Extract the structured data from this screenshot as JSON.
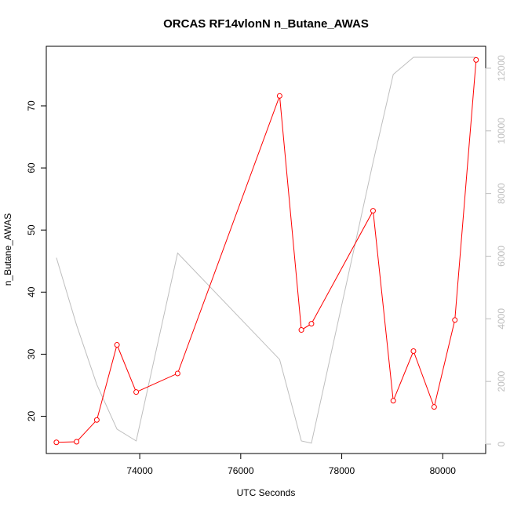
{
  "chart_data": {
    "type": "line",
    "title": "ORCAS RF14vlonN n_Butane_AWAS",
    "xlabel": "UTC Seconds",
    "ylabel": "n_Butane_AWAS",
    "xlim": [
      72150,
      80850
    ],
    "ylim": [
      14.0,
      79.6
    ],
    "y2lim": [
      -300,
      12700
    ],
    "x_ticks": [
      74000,
      76000,
      78000,
      80000
    ],
    "x_tick_labels": [
      "74000",
      "76000",
      "78000",
      "80000"
    ],
    "y_ticks": [
      20,
      30,
      40,
      50,
      60,
      70
    ],
    "y_tick_labels": [
      "20",
      "30",
      "40",
      "50",
      "60",
      "70"
    ],
    "y2_ticks": [
      0,
      2000,
      4000,
      6000,
      8000,
      10000,
      12000
    ],
    "y2_tick_labels": [
      "0",
      "2000",
      "4000",
      "6000",
      "8000",
      "10000",
      "12000"
    ],
    "grid": false,
    "colors": {
      "primary": "#ff0000",
      "secondary": "#bebebe",
      "axis": "#000000"
    },
    "series": [
      {
        "axis": "left",
        "style": "line+points",
        "color": "#ff0000",
        "x": [
          72350,
          72750,
          73150,
          73550,
          73930,
          74750,
          76770,
          77200,
          77400,
          78620,
          79020,
          79420,
          79830,
          80240,
          80660
        ],
        "y": [
          15.8,
          15.9,
          19.4,
          31.5,
          23.9,
          26.9,
          71.6,
          33.9,
          34.9,
          53.1,
          22.5,
          30.5,
          21.5,
          35.5,
          77.4
        ]
      },
      {
        "axis": "right",
        "style": "line",
        "color": "#bebebe",
        "x": [
          72350,
          72750,
          73150,
          73550,
          73930,
          74750,
          76770,
          77200,
          77400,
          78620,
          79020,
          79420,
          79830,
          80240,
          80660
        ],
        "y": [
          5950,
          3800,
          1900,
          480,
          100,
          6100,
          2700,
          100,
          30,
          9000,
          11800,
          12350,
          12350,
          12350,
          12350
        ]
      }
    ]
  }
}
